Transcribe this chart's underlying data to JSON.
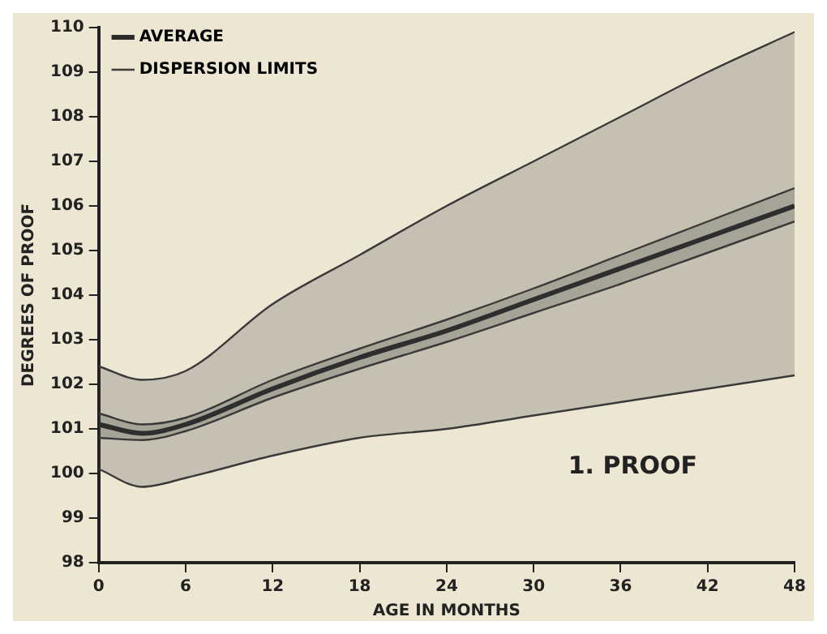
{
  "chart_data": {
    "type": "line",
    "xlabel": "AGE IN MONTHS",
    "ylabel": "DEGREES OF PROOF",
    "x": [
      0,
      3,
      6,
      12,
      18,
      24,
      30,
      36,
      42,
      48
    ],
    "xlim": [
      0,
      48
    ],
    "xticks": [
      0,
      6,
      12,
      18,
      24,
      30,
      36,
      42,
      48
    ],
    "ylim": [
      98,
      110
    ],
    "yticks": [
      98,
      99,
      100,
      101,
      102,
      103,
      104,
      105,
      106,
      107,
      108,
      109,
      110
    ],
    "grid": false,
    "legend": "top left",
    "marker": "none",
    "line_style": "solid",
    "annotations": [
      "1. PROOF"
    ],
    "series": [
      {
        "name": "AVERAGE",
        "color": "#2b2b2b",
        "values": [
          101.1,
          100.9,
          101.1,
          101.9,
          102.6,
          103.2,
          103.9,
          104.6,
          105.3,
          106.0
        ],
        "lower": [
          100.8,
          100.75,
          100.95,
          101.7,
          102.35,
          102.95,
          103.6,
          104.25,
          104.95,
          105.65
        ],
        "upper": [
          101.35,
          101.1,
          101.25,
          102.1,
          102.8,
          103.45,
          104.15,
          104.9,
          105.65,
          106.4
        ]
      },
      {
        "name": "DISPERSION LIMITS",
        "color": "#3a3a3a",
        "values": [
          102.4,
          102.1,
          102.3,
          103.8,
          104.9,
          106.0,
          107.0,
          108.0,
          109.0,
          109.9
        ],
        "lower": [
          100.1,
          99.7,
          99.9,
          100.4,
          100.8,
          101.0,
          101.3,
          101.6,
          101.9,
          102.2
        ],
        "upper": [
          102.4,
          102.1,
          102.3,
          103.8,
          104.9,
          106.0,
          107.0,
          108.0,
          109.0,
          109.9
        ]
      },
      {
        "color": "#3a3a3a",
        "values": [
          100.1,
          99.7,
          99.9,
          100.4,
          100.8,
          101.0,
          101.3,
          101.6,
          101.9,
          102.2
        ]
      },
      {
        "color": "#3a3a3a",
        "values": [
          101.35,
          101.1,
          101.25,
          102.1,
          102.8,
          103.45,
          104.15,
          104.9,
          105.65,
          106.4
        ]
      },
      {
        "color": "#3a3a3a",
        "values": [
          100.8,
          100.75,
          100.95,
          101.7,
          102.35,
          102.95,
          103.6,
          104.25,
          104.95,
          105.65
        ]
      }
    ]
  }
}
